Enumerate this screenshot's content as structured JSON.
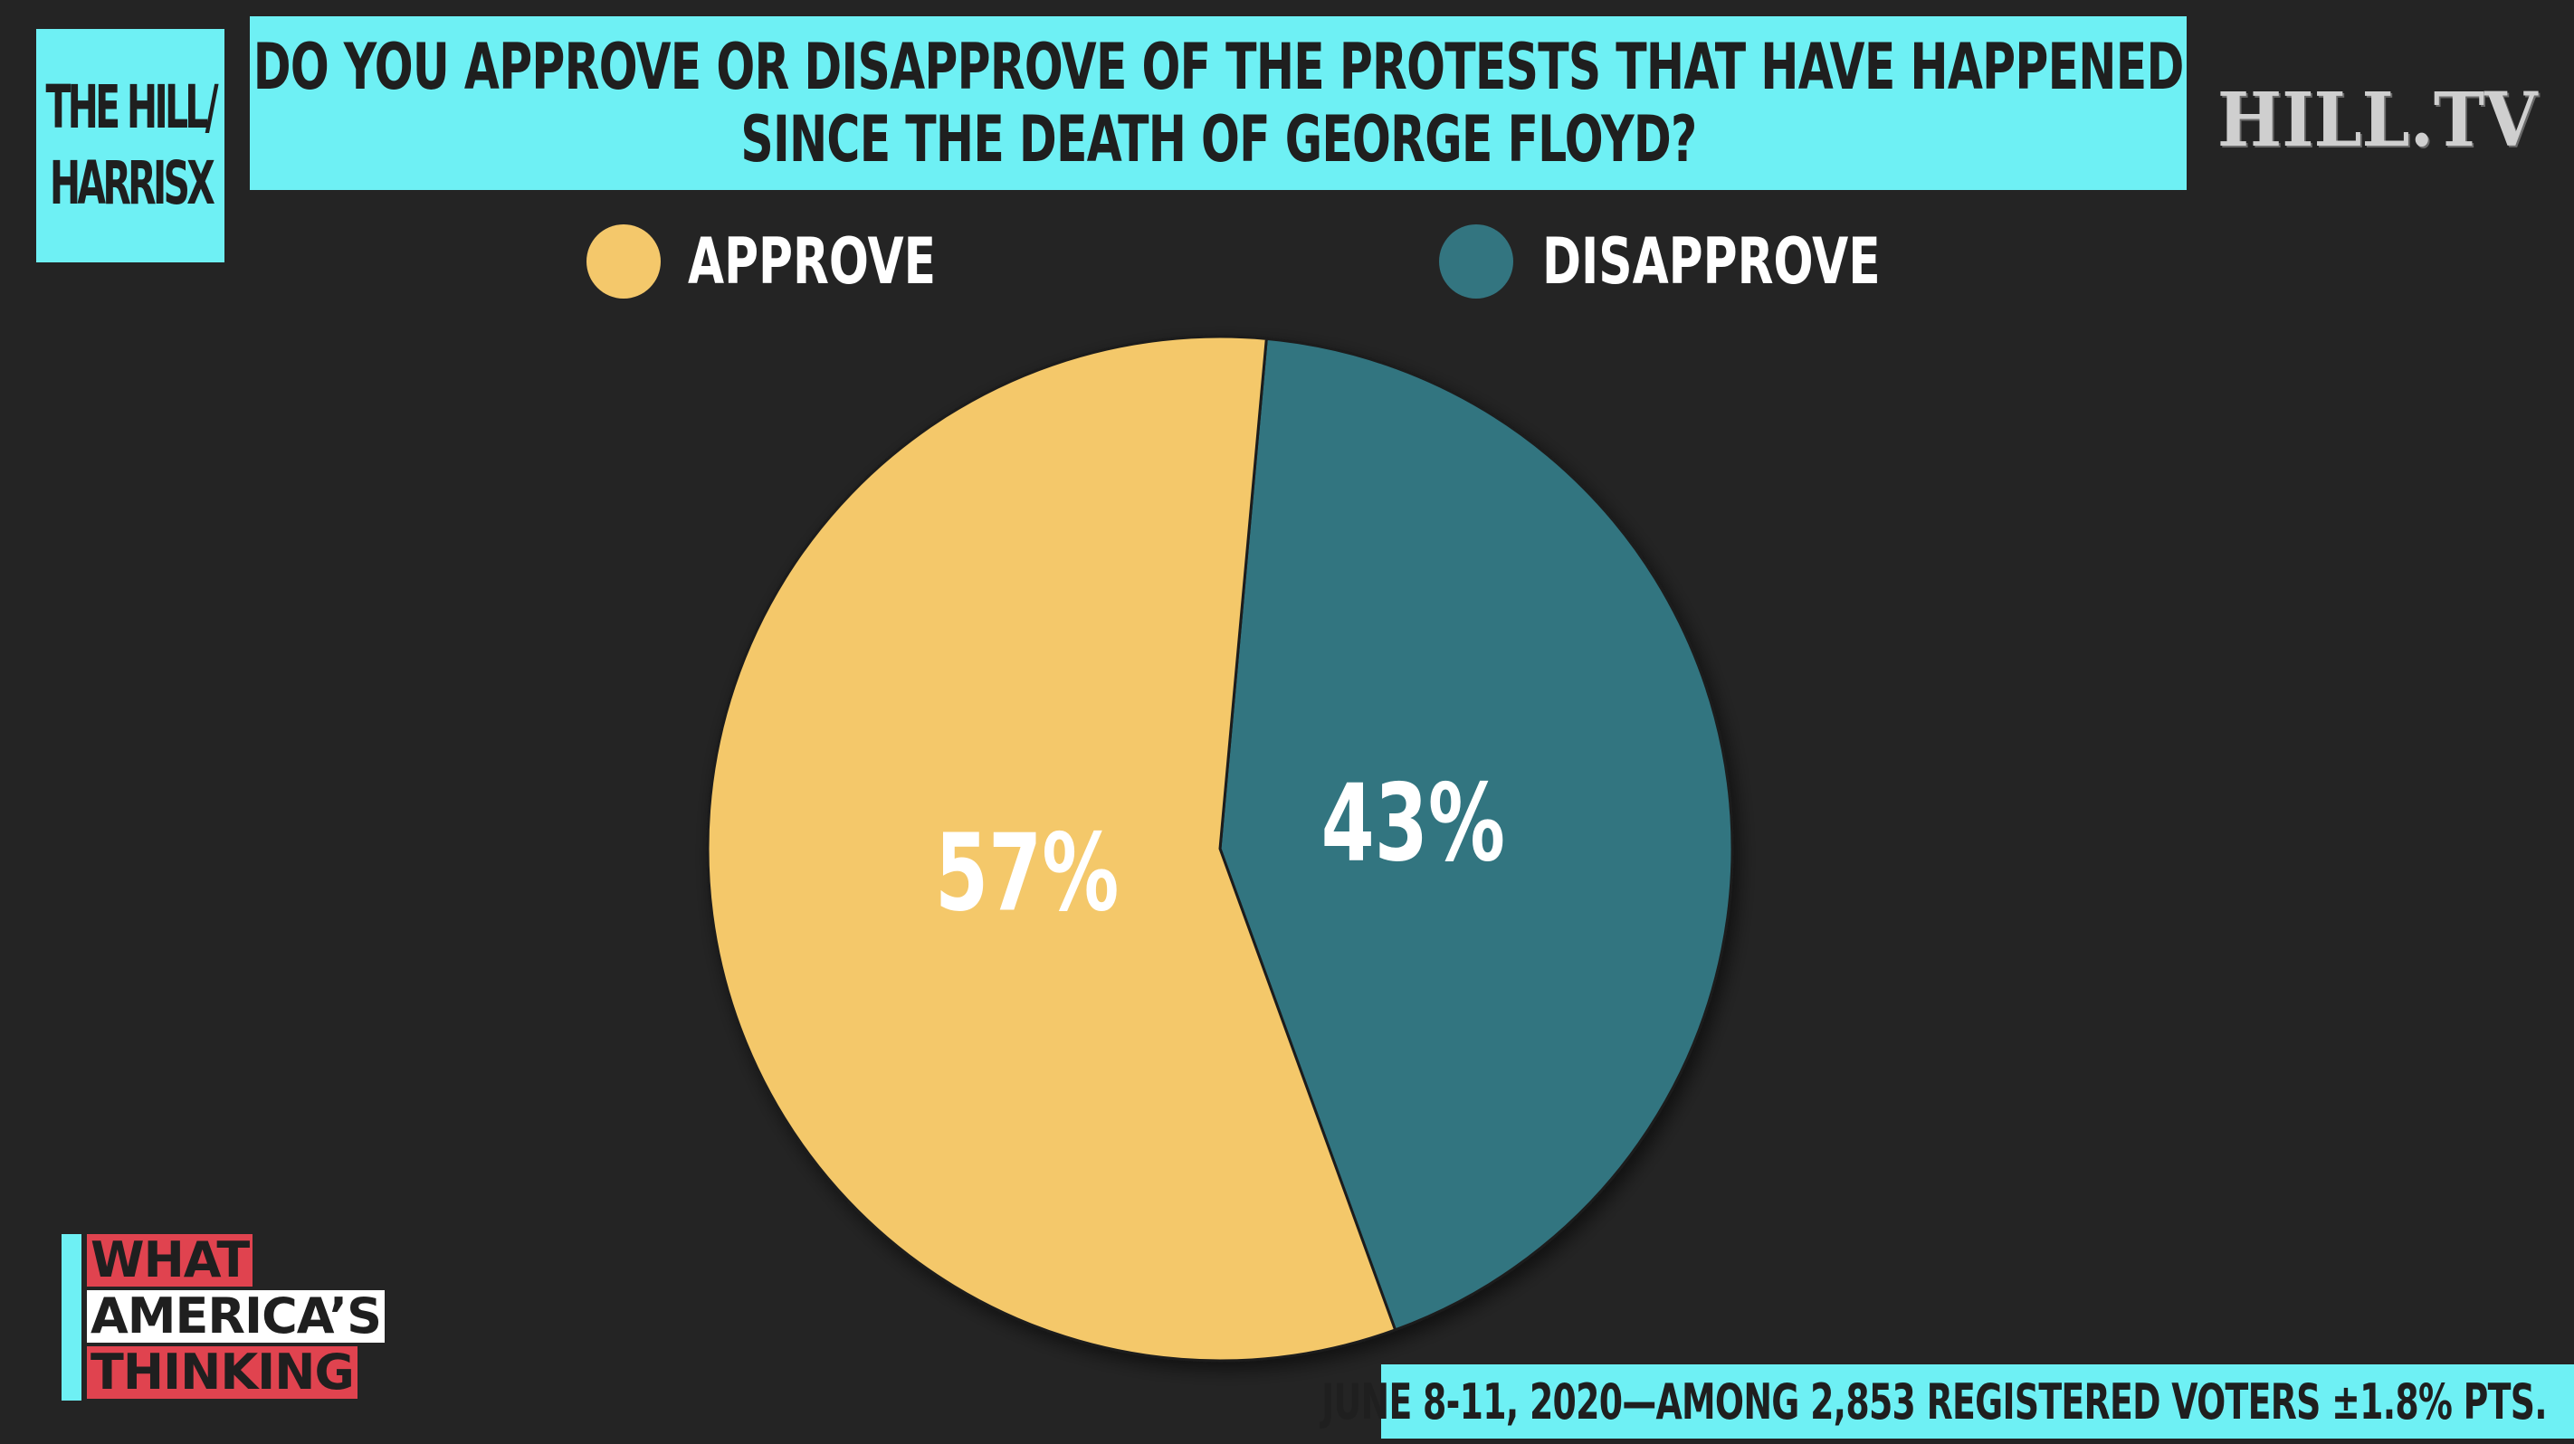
{
  "source": {
    "line1": "THE HILL/",
    "line2": "HARRISX"
  },
  "title": {
    "line1": "DO YOU APPROVE OR DISAPPROVE OF THE PROTESTS THAT HAVE HAPPENED",
    "line2": "SINCE THE DEATH OF GEORGE FLOYD?"
  },
  "brand": "HILL.TV",
  "legend": [
    {
      "label": "APPROVE",
      "color": "#F4C86B"
    },
    {
      "label": "DISAPPROVE",
      "color": "#337580"
    }
  ],
  "chart_data": {
    "type": "pie",
    "title": "DO YOU APPROVE OR DISAPPROVE OF THE PROTESTS THAT HAVE HAPPENED SINCE THE DEATH OF GEORGE FLOYD?",
    "legend_position": "top",
    "series": [
      {
        "name": "APPROVE",
        "value": 57,
        "label": "57%",
        "color": "#F4C86B"
      },
      {
        "name": "DISAPPROVE",
        "value": 43,
        "label": "43%",
        "color": "#337580"
      }
    ]
  },
  "logo": {
    "line1": "WHAT",
    "line2": "AMERICA’S",
    "line3": "THINKING"
  },
  "footer": "JUNE 8-11, 2020—AMONG 2,853 REGISTERED VOTERS ±1.8% PTS."
}
